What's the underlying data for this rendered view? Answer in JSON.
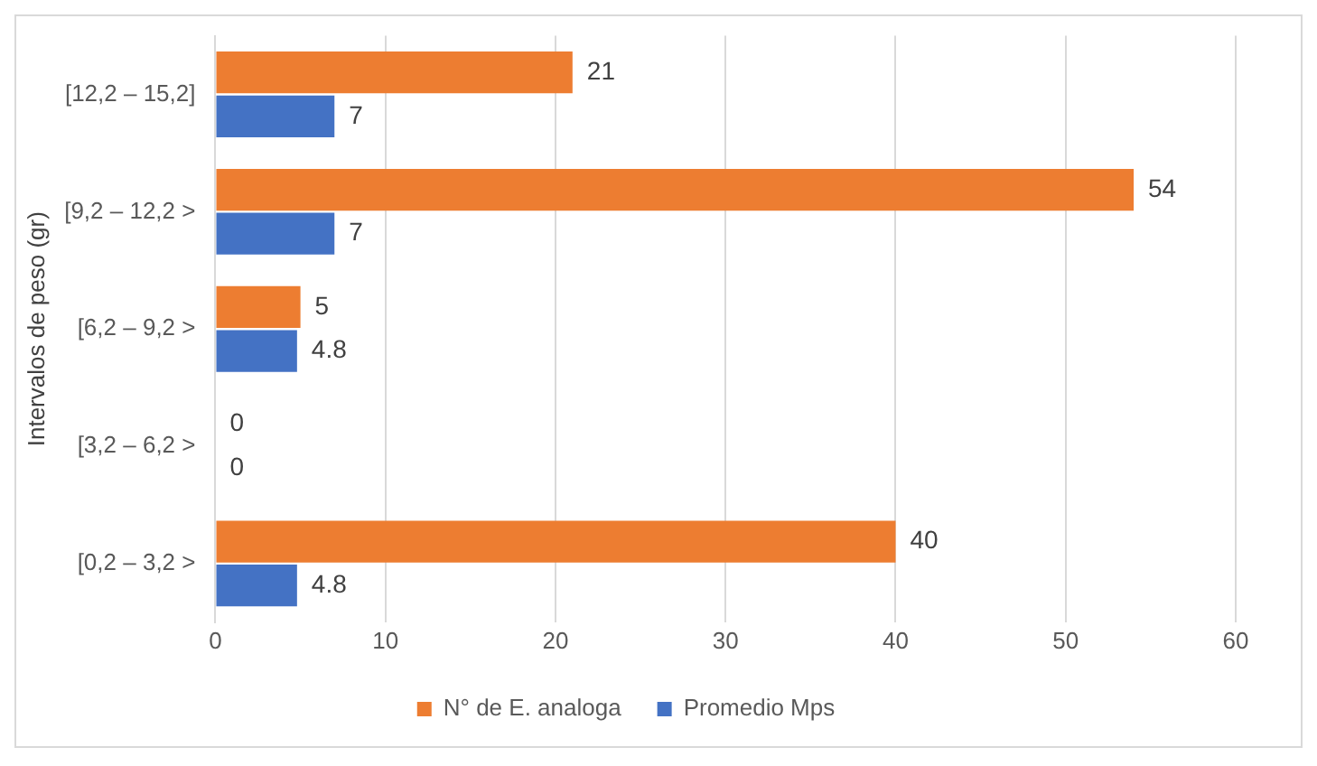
{
  "chart_data": {
    "type": "bar",
    "orientation": "horizontal",
    "ylabel": "Intervalos de peso (gr)",
    "categories": [
      "[12,2 – 15,2]",
      "[9,2 – 12,2 >",
      "[6,2 – 9,2 >",
      "[3,2 – 6,2 >",
      "[0,2 – 3,2 >"
    ],
    "series": [
      {
        "name": "N° de E. analoga",
        "color": "#ed7d31",
        "values": [
          21,
          54,
          5,
          0,
          40
        ]
      },
      {
        "name": "Promedio Mps",
        "color": "#4472c4",
        "values": [
          7,
          7,
          4.8,
          0,
          4.8
        ]
      }
    ],
    "xlim": [
      0,
      60
    ],
    "xticks": [
      0,
      10,
      20,
      30,
      40,
      50,
      60
    ],
    "grid": "x",
    "legend": "bottom",
    "data_labels": true
  }
}
